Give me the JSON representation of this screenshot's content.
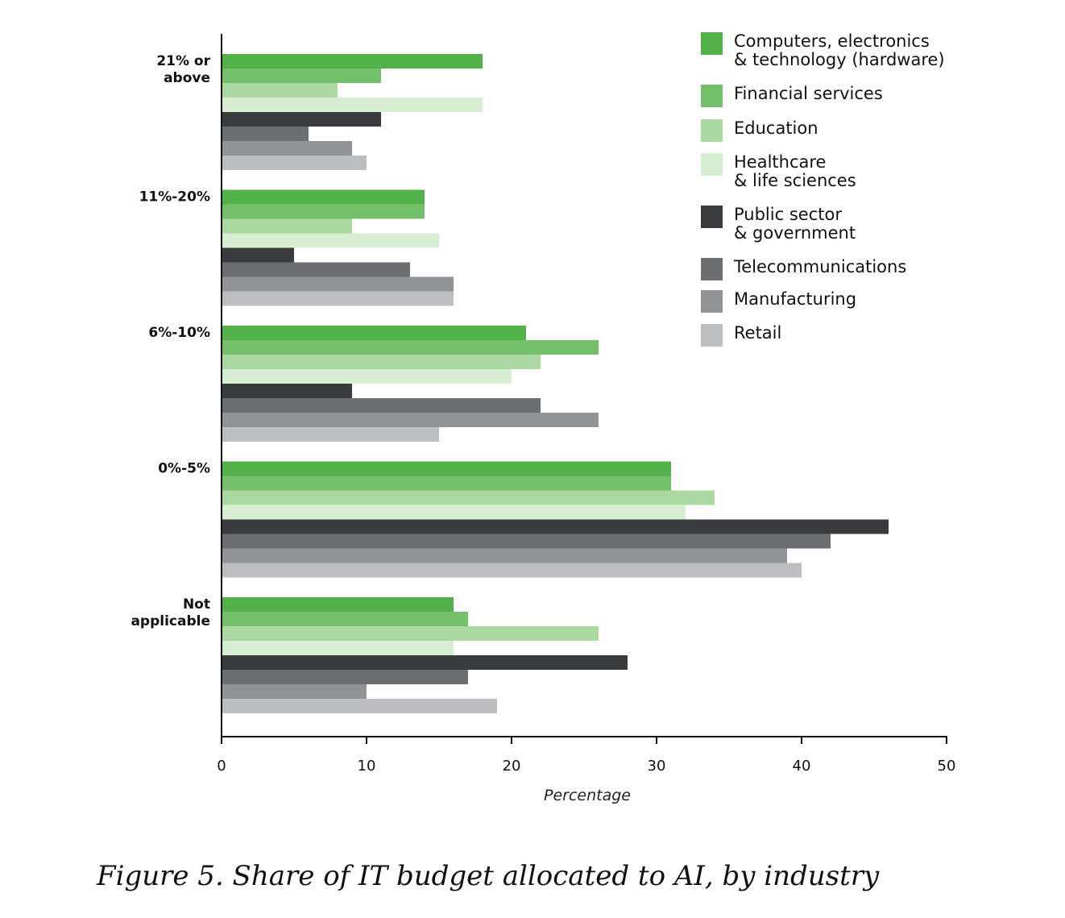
{
  "chart_data": {
    "type": "bar",
    "orientation": "horizontal",
    "xlabel": "Percentage",
    "xlim": [
      0,
      50
    ],
    "xticks": [
      0,
      10,
      20,
      30,
      40,
      50
    ],
    "grid": false,
    "legend_position": "top-right",
    "categories": [
      [
        "21% or",
        "above"
      ],
      [
        "11%-20%"
      ],
      [
        "6%-10%"
      ],
      [
        "0%-5%"
      ],
      [
        "Not",
        "applicable"
      ]
    ],
    "series": [
      {
        "name": [
          "Computers, electronics",
          "& technology (hardware)"
        ],
        "color": "#53b14a",
        "values": [
          18,
          14,
          21,
          31,
          16
        ]
      },
      {
        "name": [
          "Financial services"
        ],
        "color": "#74c06a",
        "values": [
          11,
          14,
          26,
          31,
          17
        ]
      },
      {
        "name": [
          "Education"
        ],
        "color": "#acd9a2",
        "values": [
          8,
          9,
          22,
          34,
          26
        ]
      },
      {
        "name": [
          "Healthcare",
          "& life sciences"
        ],
        "color": "#d8eed3",
        "values": [
          18,
          15,
          20,
          32,
          16
        ]
      },
      {
        "name": [
          "Public sector",
          "& government"
        ],
        "color": "#3a3b3d",
        "values": [
          11,
          5,
          9,
          46,
          28
        ]
      },
      {
        "name": [
          "Telecommunications"
        ],
        "color": "#6d6e70",
        "values": [
          6,
          13,
          22,
          42,
          17
        ]
      },
      {
        "name": [
          "Manufacturing"
        ],
        "color": "#929395",
        "values": [
          9,
          16,
          26,
          39,
          10
        ]
      },
      {
        "name": [
          "Retail"
        ],
        "color": "#bdbebf",
        "values": [
          10,
          16,
          15,
          40,
          19
        ]
      }
    ]
  },
  "caption": "Figure 5. Share of IT budget allocated to AI, by industry"
}
